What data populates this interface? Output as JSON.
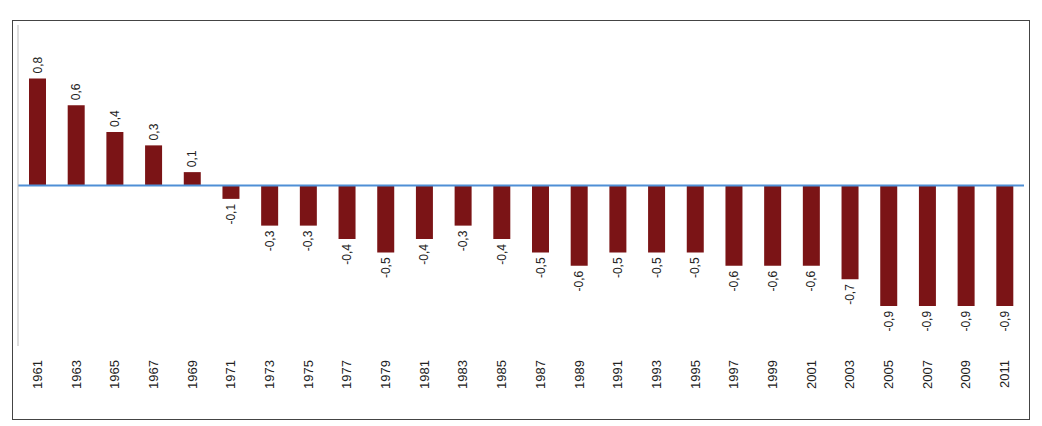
{
  "chart_data": {
    "type": "bar",
    "categories": [
      "1961",
      "1963",
      "1965",
      "1967",
      "1969",
      "1971",
      "1973",
      "1975",
      "1977",
      "1979",
      "1981",
      "1983",
      "1985",
      "1987",
      "1989",
      "1991",
      "1993",
      "1995",
      "1997",
      "1999",
      "2001",
      "2003",
      "2005",
      "2007",
      "2009",
      "2011"
    ],
    "values": [
      0.8,
      0.6,
      0.4,
      0.3,
      0.1,
      -0.1,
      -0.3,
      -0.3,
      -0.4,
      -0.5,
      -0.4,
      -0.3,
      -0.4,
      -0.5,
      -0.6,
      -0.5,
      -0.5,
      -0.5,
      -0.6,
      -0.6,
      -0.6,
      -0.7,
      -0.9,
      -0.9,
      -0.9,
      -0.9
    ],
    "value_labels": [
      "0,8",
      "0,6",
      "0,4",
      "0,3",
      "0,1",
      "-0,1",
      "-0,3",
      "-0,3",
      "-0,4",
      "-0,5",
      "-0,4",
      "-0,3",
      "-0,4",
      "-0,5",
      "-0,6",
      "-0,5",
      "-0,5",
      "-0,5",
      "-0,6",
      "-0,6",
      "-0,6",
      "-0,7",
      "-0,9",
      "-0,9",
      "-0,9",
      "-0,9"
    ],
    "color": "#7b1416",
    "ylim": [
      -1.2,
      1.2
    ],
    "data_labels": true,
    "tick_labels": "x",
    "grid": false
  }
}
